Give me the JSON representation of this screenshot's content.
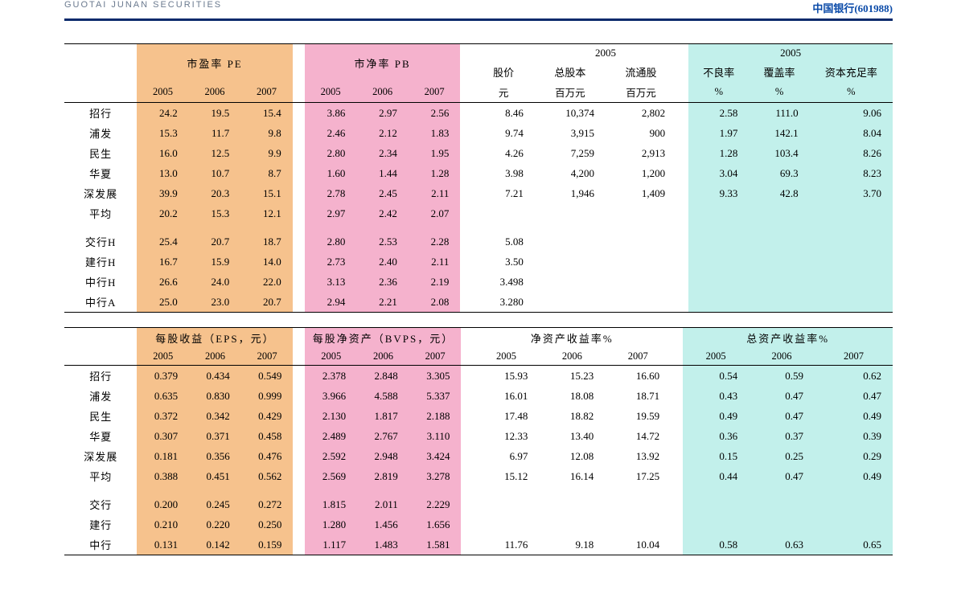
{
  "header": {
    "logo_sub": "GUOTAI JUNAN SECURITIES",
    "ticker": "中国银行(601988)"
  },
  "colors": {
    "orange": "#f6c28d",
    "pink": "#f5b2cd",
    "cyan": "#c2f0eb",
    "rule": "#0a2a6b"
  },
  "row_labels": [
    "招行",
    "浦发",
    "民生",
    "华夏",
    "深发展",
    "平均",
    "",
    "交行H",
    "建行H",
    "中行H",
    "中行A"
  ],
  "row_labels2": [
    "招行",
    "浦发",
    "民生",
    "华夏",
    "深发展",
    "平均",
    "",
    "交行",
    "建行",
    "中行"
  ],
  "table1": {
    "pe": {
      "title": "市盈率 PE",
      "years": [
        "2005",
        "2006",
        "2007"
      ],
      "rows": [
        [
          "24.2",
          "19.5",
          "15.4"
        ],
        [
          "15.3",
          "11.7",
          "9.8"
        ],
        [
          "16.0",
          "12.5",
          "9.9"
        ],
        [
          "13.0",
          "10.7",
          "8.7"
        ],
        [
          "39.9",
          "20.3",
          "15.1"
        ],
        [
          "20.2",
          "15.3",
          "12.1"
        ],
        [
          "",
          "",
          ""
        ],
        [
          "25.4",
          "20.7",
          "18.7"
        ],
        [
          "16.7",
          "15.9",
          "14.0"
        ],
        [
          "26.6",
          "24.0",
          "22.0"
        ],
        [
          "25.0",
          "23.0",
          "20.7"
        ]
      ]
    },
    "pb": {
      "title": "市净率 PB",
      "years": [
        "2005",
        "2006",
        "2007"
      ],
      "rows": [
        [
          "3.86",
          "2.97",
          "2.56"
        ],
        [
          "2.46",
          "2.12",
          "1.83"
        ],
        [
          "2.80",
          "2.34",
          "1.95"
        ],
        [
          "1.60",
          "1.44",
          "1.28"
        ],
        [
          "2.78",
          "2.45",
          "2.11"
        ],
        [
          "2.97",
          "2.42",
          "2.07"
        ],
        [
          "",
          "",
          ""
        ],
        [
          "2.80",
          "2.53",
          "2.28"
        ],
        [
          "2.73",
          "2.40",
          "2.11"
        ],
        [
          "3.13",
          "2.36",
          "2.19"
        ],
        [
          "2.94",
          "2.21",
          "2.08"
        ]
      ]
    },
    "mid": {
      "super": "2005",
      "cols": [
        "股价",
        "总股本",
        "流通股"
      ],
      "units": [
        "元",
        "百万元",
        "百万元"
      ],
      "rows": [
        [
          "8.46",
          "10,374",
          "2,802"
        ],
        [
          "9.74",
          "3,915",
          "900"
        ],
        [
          "4.26",
          "7,259",
          "2,913"
        ],
        [
          "3.98",
          "4,200",
          "1,200"
        ],
        [
          "7.21",
          "1,946",
          "1,409"
        ],
        [
          "",
          "",
          ""
        ],
        [
          "",
          "",
          ""
        ],
        [
          "5.08",
          "",
          ""
        ],
        [
          "3.50",
          "",
          ""
        ],
        [
          "3.498",
          "",
          ""
        ],
        [
          "3.280",
          "",
          ""
        ]
      ]
    },
    "right": {
      "super": "2005",
      "cols": [
        "不良率",
        "覆盖率",
        "资本充足率"
      ],
      "units": [
        "%",
        "%",
        "%"
      ],
      "rows": [
        [
          "2.58",
          "111.0",
          "9.06"
        ],
        [
          "1.97",
          "142.1",
          "8.04"
        ],
        [
          "1.28",
          "103.4",
          "8.26"
        ],
        [
          "3.04",
          "69.3",
          "8.23"
        ],
        [
          "9.33",
          "42.8",
          "3.70"
        ],
        [
          "",
          "",
          ""
        ],
        [
          "",
          "",
          ""
        ],
        [
          "",
          "",
          ""
        ],
        [
          "",
          "",
          ""
        ],
        [
          "",
          "",
          ""
        ],
        [
          "",
          "",
          ""
        ]
      ]
    }
  },
  "table2": {
    "eps": {
      "title": "每股收益（EPS，元）",
      "years": [
        "2005",
        "2006",
        "2007"
      ],
      "rows": [
        [
          "0.379",
          "0.434",
          "0.549"
        ],
        [
          "0.635",
          "0.830",
          "0.999"
        ],
        [
          "0.372",
          "0.342",
          "0.429"
        ],
        [
          "0.307",
          "0.371",
          "0.458"
        ],
        [
          "0.181",
          "0.356",
          "0.476"
        ],
        [
          "0.388",
          "0.451",
          "0.562"
        ],
        [
          "",
          "",
          ""
        ],
        [
          "0.200",
          "0.245",
          "0.272"
        ],
        [
          "0.210",
          "0.220",
          "0.250"
        ],
        [
          "0.131",
          "0.142",
          "0.159"
        ]
      ]
    },
    "bvps": {
      "title": "每股净资产（BVPS，元）",
      "years": [
        "2005",
        "2006",
        "2007"
      ],
      "rows": [
        [
          "2.378",
          "2.848",
          "3.305"
        ],
        [
          "3.966",
          "4.588",
          "5.337"
        ],
        [
          "2.130",
          "1.817",
          "2.188"
        ],
        [
          "2.489",
          "2.767",
          "3.110"
        ],
        [
          "2.592",
          "2.948",
          "3.424"
        ],
        [
          "2.569",
          "2.819",
          "3.278"
        ],
        [
          "",
          "",
          ""
        ],
        [
          "1.815",
          "2.011",
          "2.229"
        ],
        [
          "1.280",
          "1.456",
          "1.656"
        ],
        [
          "1.117",
          "1.483",
          "1.581"
        ]
      ]
    },
    "roe": {
      "title": "净资产收益率%",
      "years": [
        "2005",
        "2006",
        "2007"
      ],
      "rows": [
        [
          "15.93",
          "15.23",
          "16.60"
        ],
        [
          "16.01",
          "18.08",
          "18.71"
        ],
        [
          "17.48",
          "18.82",
          "19.59"
        ],
        [
          "12.33",
          "13.40",
          "14.72"
        ],
        [
          "6.97",
          "12.08",
          "13.92"
        ],
        [
          "15.12",
          "16.14",
          "17.25"
        ],
        [
          "",
          "",
          ""
        ],
        [
          "",
          "",
          ""
        ],
        [
          "",
          "",
          ""
        ],
        [
          "11.76",
          "9.18",
          "10.04"
        ]
      ]
    },
    "roa": {
      "title": "总资产收益率%",
      "years": [
        "2005",
        "2006",
        "2007"
      ],
      "rows": [
        [
          "0.54",
          "0.59",
          "0.62"
        ],
        [
          "0.43",
          "0.47",
          "0.47"
        ],
        [
          "0.49",
          "0.47",
          "0.49"
        ],
        [
          "0.36",
          "0.37",
          "0.39"
        ],
        [
          "0.15",
          "0.25",
          "0.29"
        ],
        [
          "0.44",
          "0.47",
          "0.49"
        ],
        [
          "",
          "",
          ""
        ],
        [
          "",
          "",
          ""
        ],
        [
          "",
          "",
          ""
        ],
        [
          "0.58",
          "0.63",
          "0.65"
        ]
      ]
    }
  }
}
